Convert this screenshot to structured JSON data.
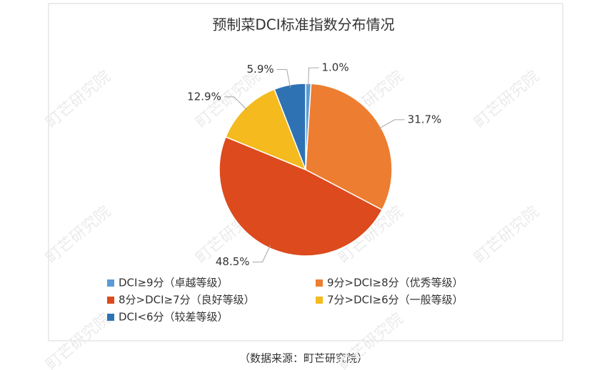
{
  "chart_data": {
    "type": "pie",
    "title": "预制菜DCI标准指数分布情况",
    "categories": [
      "DCI≥9分（卓越等级）",
      "9分>DCI≥8分（优秀等级）",
      "8分>DCI≥7分（良好等级）",
      "7分>DCI≥6分（一般等级）",
      "DCI<6分（较差等级）"
    ],
    "values": [
      1.0,
      31.7,
      48.5,
      12.9,
      5.9
    ],
    "value_labels": [
      "1.0%",
      "31.7%",
      "48.5%",
      "12.9%",
      "5.9%"
    ],
    "colors": [
      "#5b9bd5",
      "#ed7d31",
      "#dc4a1d",
      "#f4ba1e",
      "#2e72b4"
    ],
    "legend": "bottom",
    "source": "（数据来源：町芒研究院）",
    "watermark": "町芒研究院"
  }
}
